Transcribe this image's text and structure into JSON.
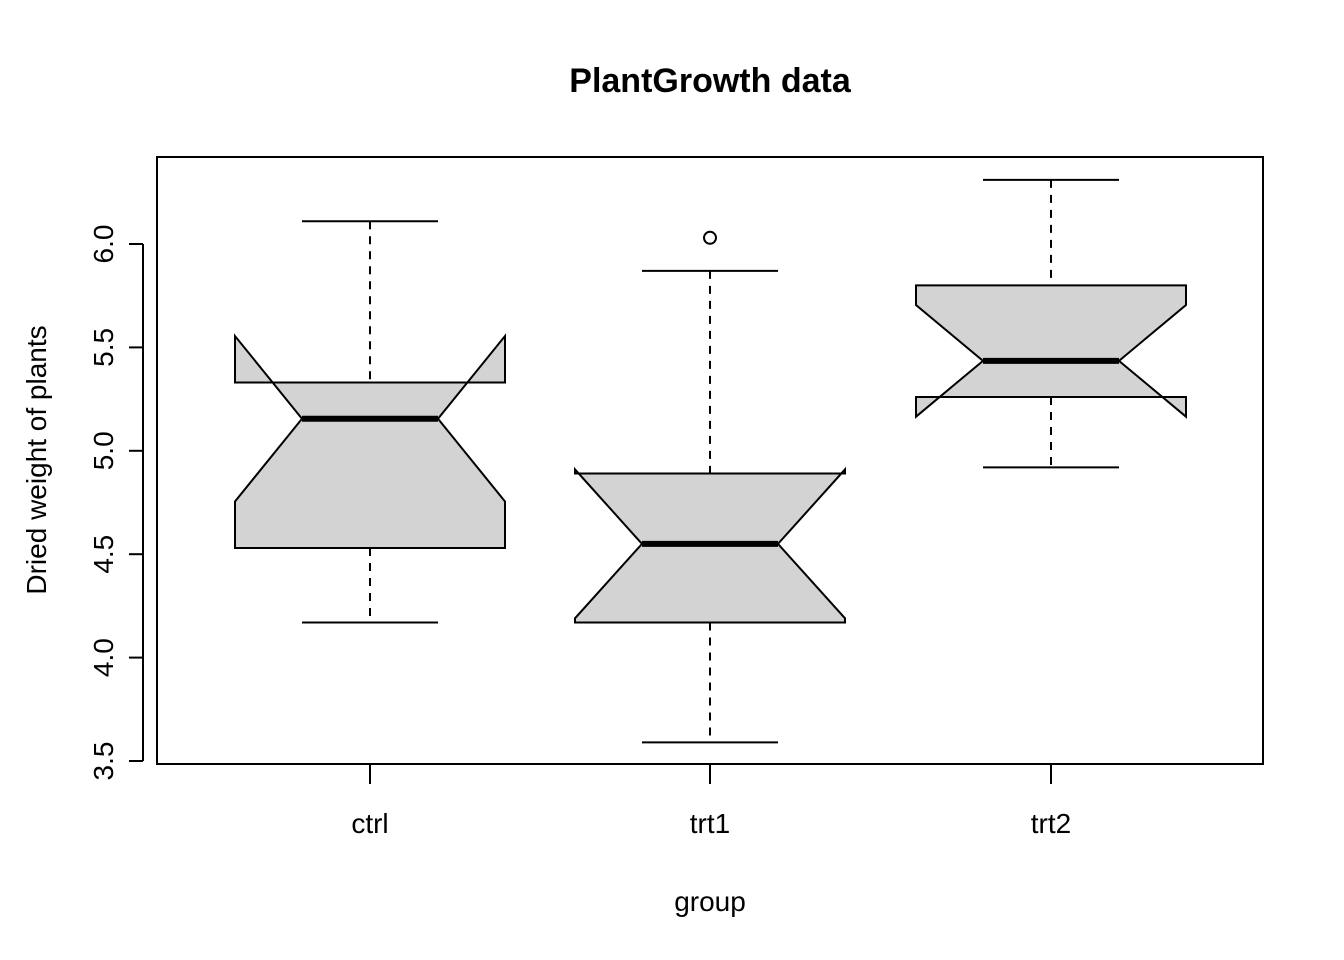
{
  "chart_data": {
    "type": "boxplot",
    "notched": true,
    "title": "PlantGrowth data",
    "xlabel": "group",
    "ylabel": "Dried weight of plants",
    "ylim": [
      3.5,
      6.35
    ],
    "yticks": [
      "3.5",
      "4.0",
      "4.5",
      "5.0",
      "5.5",
      "6.0"
    ],
    "categories": [
      "ctrl",
      "trt1",
      "trt2"
    ],
    "box_color": "#d3d3d3",
    "line_color": "#000000",
    "boxes": [
      {
        "name": "ctrl",
        "min": 4.17,
        "q1": 4.53,
        "median": 5.155,
        "q3": 5.33,
        "max": 6.11,
        "notch_low": 4.755,
        "notch_high": 5.555,
        "outliers": []
      },
      {
        "name": "trt1",
        "min": 3.59,
        "q1": 4.17,
        "median": 4.55,
        "q3": 4.89,
        "max": 5.87,
        "notch_low": 4.19,
        "notch_high": 4.91,
        "outliers": [
          6.03
        ]
      },
      {
        "name": "trt2",
        "min": 4.92,
        "q1": 5.26,
        "median": 5.435,
        "q3": 5.8,
        "max": 6.31,
        "notch_low": 5.165,
        "notch_high": 5.705,
        "outliers": []
      }
    ]
  }
}
